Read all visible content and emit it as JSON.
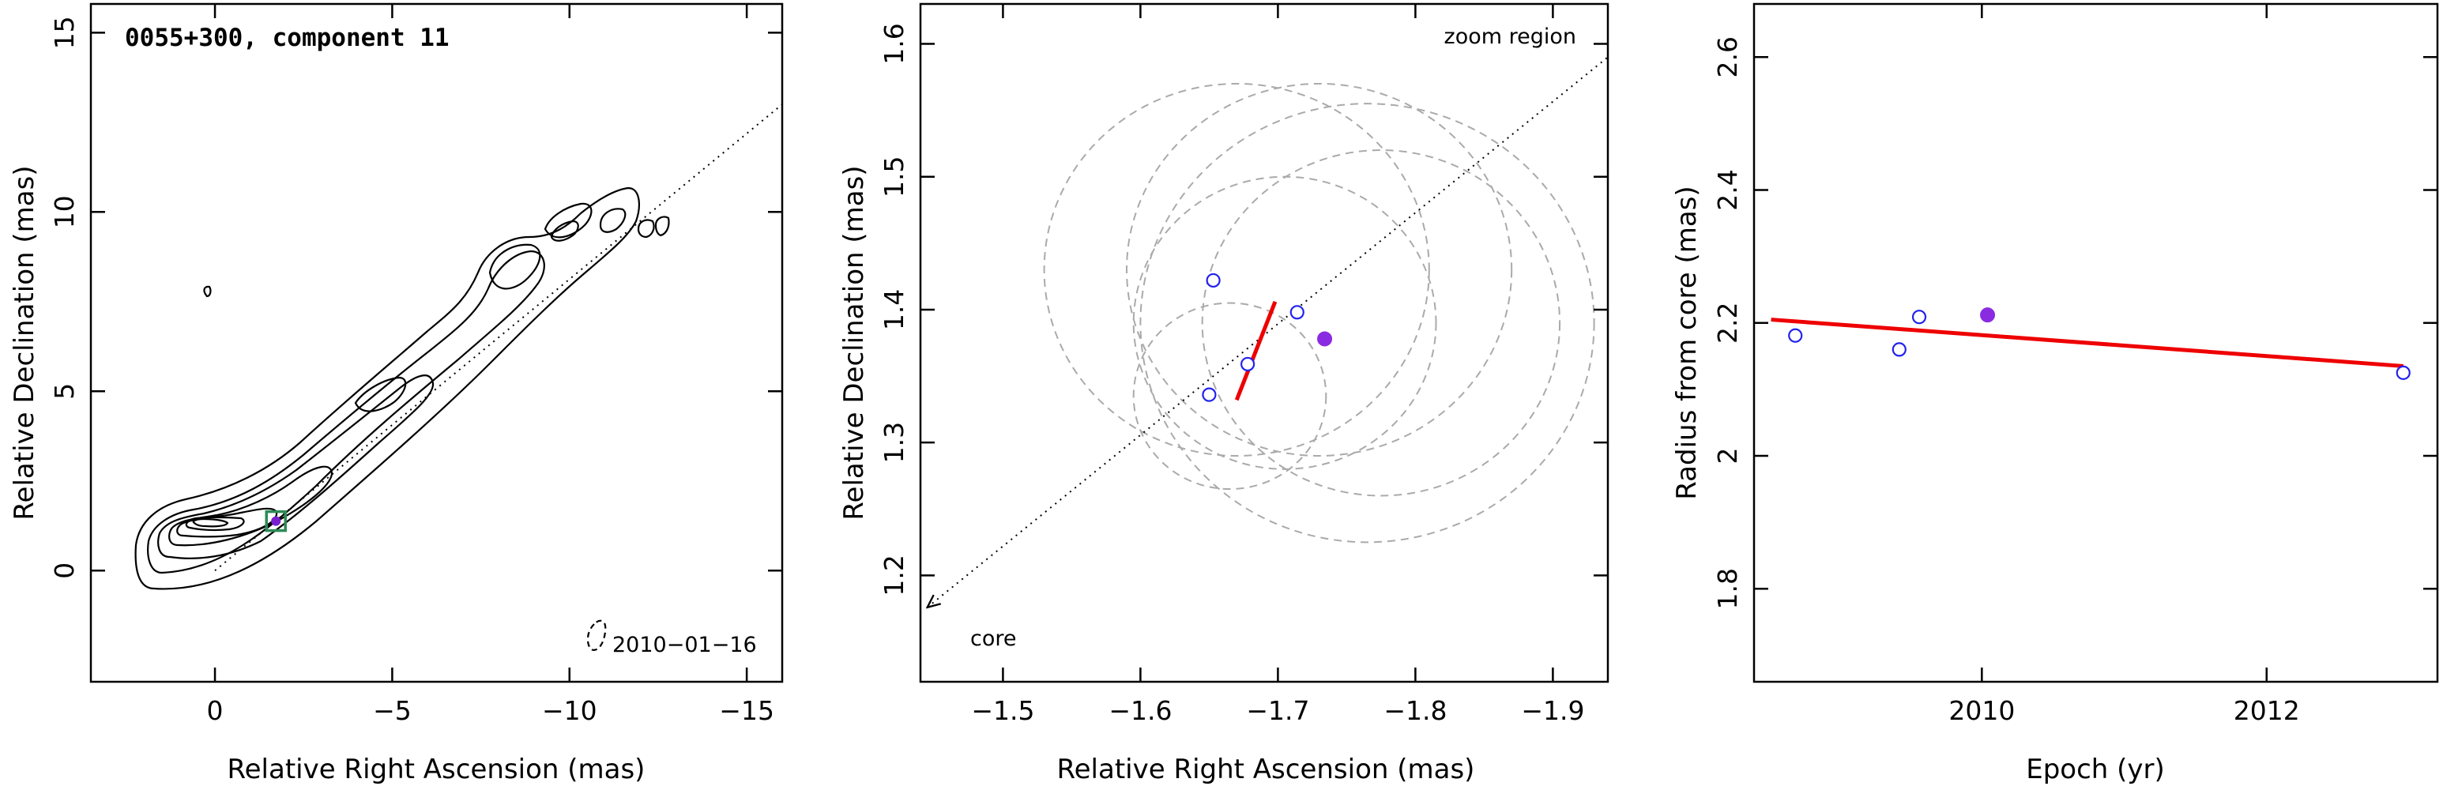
{
  "chart_data": [
    {
      "type": "contour",
      "title": "0055+300, component 11",
      "xlabel": "Relative Right Ascension (mas)",
      "ylabel": "Relative Declination (mas)",
      "xlim": [
        3.5,
        -16
      ],
      "ylim": [
        -3.1,
        15.8
      ],
      "xticks": [
        0,
        -5,
        -10,
        -15
      ],
      "xtick_labels": [
        "0",
        "−5",
        "−10",
        "−15"
      ],
      "yticks": [
        0,
        5,
        10,
        15
      ],
      "ytick_labels": [
        "0",
        "5",
        "10",
        "15"
      ],
      "date_label": "2010−01−16",
      "component_marker": {
        "x": -1.72,
        "y": 1.38
      },
      "jet_axis": {
        "from": [
          0,
          0
        ],
        "to": [
          -16,
          13
        ]
      },
      "contour_levels": 9,
      "colors": {
        "contour": "#000000",
        "marker_box": "#2e8b57",
        "marker_point": "#7a1fd0"
      }
    },
    {
      "type": "scatter",
      "xlabel": "Relative Right Ascension (mas)",
      "ylabel": "Relative Declination (mas)",
      "xlim": [
        -1.44,
        -1.94
      ],
      "ylim": [
        1.12,
        1.63
      ],
      "xticks": [
        -1.5,
        -1.6,
        -1.7,
        -1.8,
        -1.9
      ],
      "xtick_labels": [
        "−1.5",
        "−1.6",
        "−1.7",
        "−1.8",
        "−1.9"
      ],
      "yticks": [
        1.2,
        1.3,
        1.4,
        1.5,
        1.6
      ],
      "ytick_labels": [
        "1.2",
        "1.3",
        "1.4",
        "1.5",
        "1.6"
      ],
      "annotation_zoom": "zoom region",
      "annotation_core": "core",
      "points_open": [
        {
          "x": -1.653,
          "y": 1.422
        },
        {
          "x": -1.714,
          "y": 1.398
        },
        {
          "x": -1.678,
          "y": 1.359
        },
        {
          "x": -1.65,
          "y": 1.336
        }
      ],
      "points_filled": [
        {
          "x": -1.734,
          "y": 1.378
        }
      ],
      "circles": [
        {
          "cx": -1.705,
          "cy": 1.39,
          "r": 0.11
        },
        {
          "cx": -1.67,
          "cy": 1.43,
          "r": 0.14
        },
        {
          "cx": -1.73,
          "cy": 1.43,
          "r": 0.14
        },
        {
          "cx": -1.765,
          "cy": 1.39,
          "r": 0.165
        },
        {
          "cx": -1.775,
          "cy": 1.39,
          "r": 0.13
        },
        {
          "cx": -1.665,
          "cy": 1.335,
          "r": 0.07
        }
      ],
      "fit_segment": {
        "from": [
          -1.67,
          1.332
        ],
        "to": [
          -1.698,
          1.406
        ]
      },
      "jet_axis": {
        "from": [
          -1.445,
          1.176
        ],
        "to": [
          -1.94,
          1.59
        ]
      },
      "colors": {
        "open_points": "#2222ee",
        "filled_point": "#8a2be2",
        "fit": "#ee0000",
        "circles": "#aaaaaa"
      }
    },
    {
      "type": "scatter",
      "xlabel": "Epoch (yr)",
      "ylabel": "Radius from core (mas)",
      "xlim": [
        2008.4,
        2013.2
      ],
      "ylim": [
        1.66,
        2.68
      ],
      "xticks": [
        2010,
        2012
      ],
      "xtick_labels": [
        "2010",
        "2012"
      ],
      "yticks": [
        1.8,
        2.0,
        2.2,
        2.4,
        2.6
      ],
      "ytick_labels": [
        "1.8",
        "2",
        "2.2",
        "2.4",
        "2.6"
      ],
      "points_open": [
        {
          "x": 2008.69,
          "y": 2.181
        },
        {
          "x": 2009.42,
          "y": 2.16
        },
        {
          "x": 2009.56,
          "y": 2.209
        },
        {
          "x": 2012.96,
          "y": 2.125
        }
      ],
      "points_filled": [
        {
          "x": 2010.04,
          "y": 2.212
        }
      ],
      "fit_line": {
        "from": [
          2008.52,
          2.205
        ],
        "to": [
          2012.96,
          2.135
        ]
      },
      "colors": {
        "open_points": "#2222ee",
        "filled_point": "#8a2be2",
        "fit": "#ee0000"
      }
    }
  ]
}
